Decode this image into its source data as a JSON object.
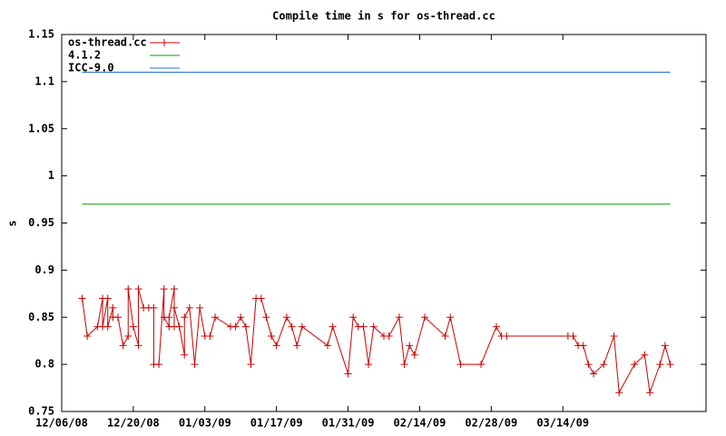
{
  "chart_data": {
    "type": "line",
    "title": "Compile time in s for os-thread.cc",
    "ylabel": "s",
    "xlim": [
      "12/06/08",
      "04/11/09"
    ],
    "xticks": [
      "12/06/08",
      "12/20/08",
      "01/03/09",
      "01/17/09",
      "01/31/09",
      "02/14/09",
      "02/28/09",
      "03/14/09"
    ],
    "ylim": [
      0.75,
      1.15
    ],
    "yticks": [
      0.75,
      0.8,
      0.85,
      0.9,
      0.95,
      1,
      1.05,
      1.1,
      1.15
    ],
    "legend": "top-left",
    "series": [
      {
        "name": "os-thread.cc",
        "color": "#cc0000",
        "marker": "plus",
        "x": [
          "12/10/08",
          "12/11/08",
          "12/13/08",
          "12/14/08",
          "12/14/08",
          "12/15/08",
          "12/15/08",
          "12/16/08",
          "12/16/08",
          "12/17/08",
          "12/18/08",
          "12/19/08",
          "12/19/08",
          "12/20/08",
          "12/21/08",
          "12/21/08",
          "12/22/08",
          "12/23/08",
          "12/24/08",
          "12/24/08",
          "12/25/08",
          "12/26/08",
          "12/26/08",
          "12/27/08",
          "12/27/08",
          "12/28/08",
          "12/28/08",
          "12/28/08",
          "12/29/08",
          "12/30/08",
          "12/30/08",
          "12/31/08",
          "01/01/09",
          "01/02/09",
          "01/03/09",
          "01/04/09",
          "01/05/09",
          "01/08/09",
          "01/09/09",
          "01/10/09",
          "01/11/09",
          "01/12/09",
          "01/13/09",
          "01/14/09",
          "01/15/09",
          "01/16/09",
          "01/17/09",
          "01/19/09",
          "01/20/09",
          "01/21/09",
          "01/22/09",
          "01/27/09",
          "01/28/09",
          "01/31/09",
          "02/01/09",
          "02/02/09",
          "02/03/09",
          "02/04/09",
          "02/05/09",
          "02/07/09",
          "02/08/09",
          "02/10/09",
          "02/11/09",
          "02/12/09",
          "02/13/09",
          "02/15/09",
          "02/19/09",
          "02/20/09",
          "02/22/09",
          "02/26/09",
          "03/01/09",
          "03/02/09",
          "03/03/09",
          "03/15/09",
          "03/16/09",
          "03/17/09",
          "03/18/09",
          "03/19/09",
          "03/20/09",
          "03/22/09",
          "03/24/09",
          "03/25/09",
          "03/28/09",
          "03/30/09",
          "03/31/09",
          "04/02/09",
          "04/03/09",
          "04/04/09"
        ],
        "values": [
          0.87,
          0.83,
          0.84,
          0.87,
          0.84,
          0.87,
          0.84,
          0.86,
          0.85,
          0.85,
          0.82,
          0.83,
          0.88,
          0.84,
          0.82,
          0.88,
          0.86,
          0.86,
          0.86,
          0.8,
          0.8,
          0.88,
          0.85,
          0.84,
          0.85,
          0.88,
          0.84,
          0.86,
          0.84,
          0.81,
          0.85,
          0.86,
          0.8,
          0.86,
          0.83,
          0.83,
          0.85,
          0.84,
          0.84,
          0.85,
          0.84,
          0.8,
          0.87,
          0.87,
          0.85,
          0.83,
          0.82,
          0.85,
          0.84,
          0.82,
          0.84,
          0.82,
          0.84,
          0.79,
          0.85,
          0.84,
          0.84,
          0.8,
          0.84,
          0.83,
          0.83,
          0.85,
          0.8,
          0.82,
          0.81,
          0.85,
          0.83,
          0.85,
          0.8,
          0.8,
          0.84,
          0.83,
          0.83,
          0.83,
          0.83,
          0.82,
          0.82,
          0.8,
          0.79,
          0.8,
          0.83,
          0.77,
          0.8,
          0.81,
          0.77,
          0.8,
          0.82,
          0.8
        ]
      },
      {
        "name": "4.1.2",
        "color": "#00a000",
        "x": [
          "12/10/08",
          "04/04/09"
        ],
        "values": [
          0.97,
          0.97
        ]
      },
      {
        "name": "ICC-9.0",
        "color": "#1f6fd0",
        "x": [
          "12/10/08",
          "04/04/09"
        ],
        "values": [
          1.11,
          1.11
        ]
      }
    ]
  }
}
